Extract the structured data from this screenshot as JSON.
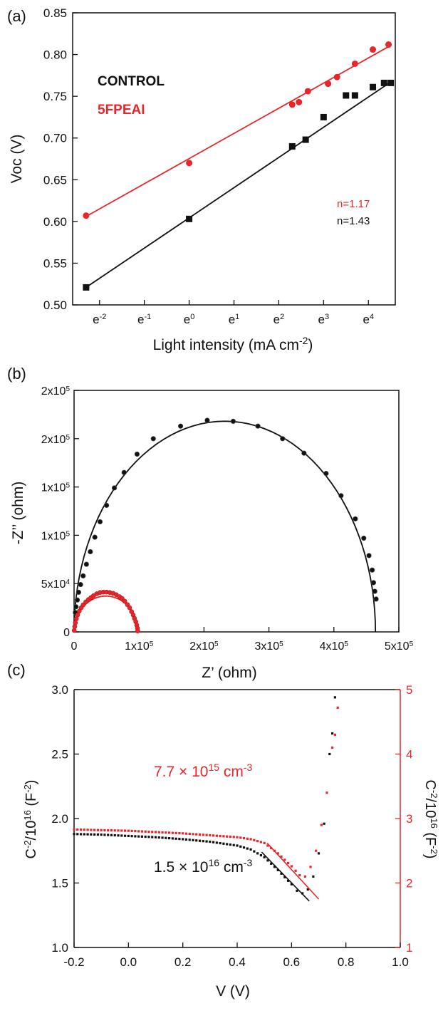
{
  "colors": {
    "control": "#111111",
    "fpeai": "#e8262a",
    "axis": "#111111"
  },
  "chart_data": [
    {
      "panel_label": "(a)",
      "type": "scatter",
      "xscale": "ln",
      "xlabel": "Light intensity (mA cm",
      "xlabel_sup": "-2",
      "xlabel_suffix": ")",
      "ylabel": "Voc (V)",
      "xlim": [
        -2.6,
        4.6
      ],
      "ylim": [
        0.5,
        0.85
      ],
      "xticks": [
        {
          "base": "e",
          "exp": "-2",
          "value": -2
        },
        {
          "base": "e",
          "exp": "-1",
          "value": -1
        },
        {
          "base": "e",
          "exp": "0",
          "value": 0
        },
        {
          "base": "e",
          "exp": "1",
          "value": 1
        },
        {
          "base": "e",
          "exp": "2",
          "value": 2
        },
        {
          "base": "e",
          "exp": "3",
          "value": 3
        },
        {
          "base": "e",
          "exp": "4",
          "value": 4
        }
      ],
      "yticks": [
        "0.50",
        "0.55",
        "0.60",
        "0.65",
        "0.70",
        "0.75",
        "0.80",
        "0.85"
      ],
      "legend": [
        {
          "name": "CONTROL",
          "color": "#111111"
        },
        {
          "name": "5FPEAI",
          "color": "#e8262a"
        }
      ],
      "annotations": [
        {
          "text": "n=1.17",
          "color": "#e8262a"
        },
        {
          "text": "n=1.43",
          "color": "#111111"
        }
      ],
      "series": [
        {
          "name": "CONTROL",
          "marker": "square",
          "color": "#111111",
          "x": [
            -2.3,
            0.0,
            2.3,
            2.6,
            3.0,
            3.5,
            3.7,
            4.1,
            4.35,
            4.5
          ],
          "y": [
            0.521,
            0.603,
            0.69,
            0.698,
            0.725,
            0.751,
            0.751,
            0.761,
            0.766,
            0.766
          ],
          "fit": {
            "x": [
              -2.3,
              4.55
            ],
            "y": [
              0.521,
              0.769
            ]
          }
        },
        {
          "name": "5FPEAI",
          "marker": "circle",
          "color": "#e8262a",
          "x": [
            -2.3,
            0.0,
            2.3,
            2.45,
            2.65,
            3.1,
            3.3,
            3.7,
            4.1,
            4.45
          ],
          "y": [
            0.607,
            0.67,
            0.74,
            0.743,
            0.756,
            0.765,
            0.773,
            0.789,
            0.806,
            0.812
          ],
          "fit": {
            "x": [
              -2.3,
              4.5
            ],
            "y": [
              0.606,
              0.811
            ]
          }
        }
      ]
    },
    {
      "panel_label": "(b)",
      "type": "scatter",
      "xlabel": "Z’ (ohm)",
      "ylabel": "-Z’’ (ohm)",
      "xlim": [
        0,
        500000
      ],
      "ylim": [
        0,
        250000
      ],
      "xticks": [
        {
          "text": "0",
          "value": 0
        },
        {
          "text": "1x10",
          "sup": "5",
          "value": 100000
        },
        {
          "text": "2x10",
          "sup": "5",
          "value": 200000
        },
        {
          "text": "3x10",
          "sup": "5",
          "value": 300000
        },
        {
          "text": "4x10",
          "sup": "5",
          "value": 400000
        },
        {
          "text": "5x10",
          "sup": "5",
          "value": 500000
        }
      ],
      "yticks": [
        {
          "text": "0",
          "value": 0
        },
        {
          "text": "5x10",
          "sup": "4",
          "value": 50000
        },
        {
          "text": "1x10",
          "sup": "5",
          "value": 100000
        },
        {
          "text": "1x10",
          "sup": "5",
          "value": 150000
        },
        {
          "text": "2x10",
          "sup": "5",
          "value": 200000
        },
        {
          "text": "2x10",
          "sup": "5",
          "value": 250000
        }
      ],
      "series": [
        {
          "name": "CONTROL",
          "marker": "circle",
          "color": "#111111",
          "center": 232000,
          "radius": 232000,
          "yscale": 1.0,
          "x": [
            2000,
            3000,
            5000,
            7000,
            10000,
            14000,
            19000,
            25000,
            32000,
            40000,
            50000,
            62000,
            77000,
            97000,
            122000,
            164000,
            205000,
            245000,
            283000,
            321000,
            354000,
            388000,
            411000,
            433000,
            446000,
            454000,
            459000,
            461000,
            463000,
            465000
          ],
          "y": [
            20000,
            26000,
            33000,
            41000,
            49000,
            58000,
            70000,
            83000,
            98000,
            114000,
            131000,
            149000,
            165000,
            184000,
            200000,
            213000,
            219000,
            218000,
            213000,
            200000,
            185000,
            164000,
            141000,
            117000,
            97000,
            79000,
            64000,
            51000,
            42000,
            34000
          ]
        },
        {
          "name": "5FPEAI",
          "marker": "circle",
          "color": "#e8262a",
          "center": 49000,
          "radius": 49000,
          "yscale": 0.84,
          "x": [
            200,
            1000,
            2000,
            3500,
            5500,
            8000,
            11000,
            14000,
            18000,
            22000,
            26000,
            30000,
            35000,
            40000,
            45000,
            50000,
            55000,
            60000,
            65000,
            70000,
            74000,
            78000,
            82000,
            85500,
            88500,
            91000,
            93000,
            95000,
            96500,
            97500,
            98000
          ],
          "y": [
            1500,
            5500,
            9500,
            13500,
            17500,
            21500,
            25000,
            28000,
            31000,
            33500,
            35500,
            37500,
            39500,
            40800,
            41200,
            41200,
            40800,
            40000,
            38500,
            36500,
            34500,
            31800,
            28300,
            25000,
            21000,
            17500,
            14000,
            10500,
            7000,
            4000,
            1000
          ]
        }
      ]
    },
    {
      "panel_label": "(c)",
      "type": "scatter",
      "xlabel": "V (V)",
      "ylabel_left": {
        "pre": "C",
        "sup": "-2",
        "mid": "/10",
        "sup2": "16",
        "post": " (F",
        "sup3": "-2",
        "end": ")"
      },
      "ylabel_right": {
        "pre": "C",
        "sup": "-2",
        "mid": "/10",
        "sup2": "16",
        "post": " (F",
        "sup3": "-2",
        "end": ")"
      },
      "xlim": [
        -0.2,
        1.0
      ],
      "ylim_left": [
        1.0,
        3.0
      ],
      "ylim_right": [
        1,
        5
      ],
      "xticks": [
        "-0.2",
        "0.0",
        "0.2",
        "0.4",
        "0.6",
        "0.8",
        "1.0"
      ],
      "yticks_left": [
        "1.0",
        "1.5",
        "2.0",
        "2.5",
        "3.0"
      ],
      "yticks_right": [
        "1",
        "2",
        "3",
        "4",
        "5"
      ],
      "annotations": [
        {
          "base": "7.7 × 10",
          "sup": "15",
          "unit": " cm",
          "unit_sup": "-3",
          "color": "#e8262a"
        },
        {
          "base": "1.5 × 10",
          "sup": "16",
          "unit": " cm",
          "unit_sup": "-3",
          "color": "#111111"
        }
      ],
      "series": [
        {
          "name": "CONTROL",
          "axis": "left",
          "marker": "small-square",
          "color": "#111111",
          "x": [
            -0.2,
            -0.1,
            0.0,
            0.1,
            0.2,
            0.3,
            0.4,
            0.45,
            0.5,
            0.55,
            0.6,
            0.62,
            0.64,
            0.66,
            0.68,
            0.7,
            0.72,
            0.74,
            0.75,
            0.76
          ],
          "y": [
            1.88,
            1.875,
            1.865,
            1.855,
            1.84,
            1.82,
            1.79,
            1.76,
            1.7,
            1.6,
            1.49,
            1.44,
            1.42,
            1.45,
            1.55,
            1.73,
            1.96,
            2.5,
            2.66,
            2.94
          ],
          "fit": {
            "x": [
              0.49,
              0.665
            ],
            "y": [
              1.74,
              1.36
            ]
          }
        },
        {
          "name": "5FPEAI",
          "axis": "right",
          "marker": "small-square",
          "color": "#e8262a",
          "x": [
            -0.2,
            -0.1,
            0.0,
            0.1,
            0.2,
            0.3,
            0.4,
            0.45,
            0.5,
            0.55,
            0.6,
            0.63,
            0.65,
            0.67,
            0.69,
            0.71,
            0.73,
            0.75,
            0.76,
            0.77
          ],
          "y": [
            2.83,
            2.82,
            2.81,
            2.79,
            2.77,
            2.74,
            2.71,
            2.68,
            2.62,
            2.46,
            2.26,
            2.12,
            2.1,
            2.25,
            2.5,
            2.9,
            3.4,
            4.1,
            4.3,
            4.72
          ],
          "fit": {
            "x": [
              0.51,
              0.7
            ],
            "y": [
              2.62,
              1.75
            ]
          }
        }
      ]
    }
  ]
}
